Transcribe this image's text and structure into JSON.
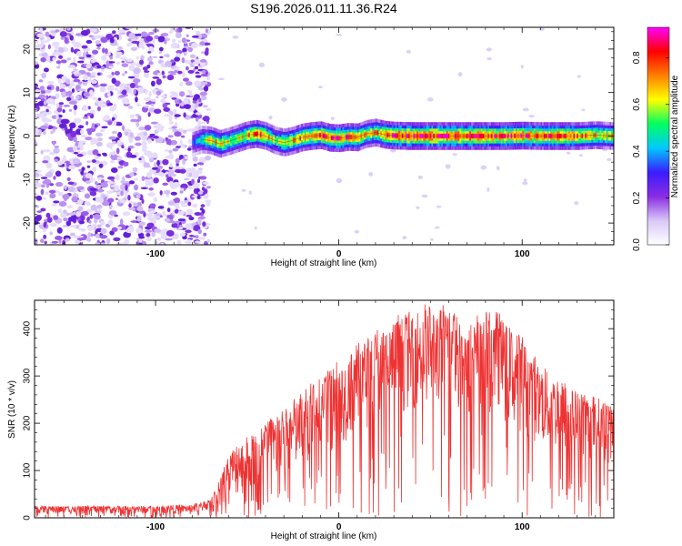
{
  "figure_title": "S196.2026.011.11.36.R24",
  "chart_data": [
    {
      "type": "heatmap",
      "title": "S196.2026.011.11.36.R24",
      "xlabel": "Height of straight line (km)",
      "ylabel": "Frequency (Hz)",
      "xlim": [
        -166,
        150
      ],
      "ylim": [
        -25,
        25
      ],
      "xticks": [
        -100,
        0,
        100
      ],
      "yticks": [
        -20,
        -10,
        0,
        10,
        20
      ],
      "colorbar": {
        "label": "Normalized spectral amplitude",
        "range": [
          0,
          0.93
        ],
        "ticks": [
          0.0,
          0.2,
          0.4,
          0.6,
          0.8
        ],
        "colors": [
          "#ffffff",
          "#d8c8f8",
          "#8a2be2",
          "#3a1cff",
          "#00c8ff",
          "#00ff60",
          "#ffff00",
          "#ff8000",
          "#ff0000",
          "#ff00ff"
        ]
      },
      "noise_region_x": [
        -166,
        -75
      ],
      "signal_trace": {
        "x": [
          -80,
          -75,
          -70,
          -65,
          -60,
          -55,
          -50,
          -45,
          -40,
          -35,
          -30,
          -25,
          -20,
          -15,
          -10,
          -5,
          0,
          5,
          10,
          15,
          20,
          25,
          30,
          40,
          50,
          60,
          70,
          80,
          90,
          100,
          110,
          120,
          130,
          140,
          150
        ],
        "freq_hz": [
          -1.5,
          -0.8,
          -1.0,
          -1.8,
          -1.2,
          -0.5,
          0.2,
          0.5,
          0.0,
          -1.0,
          -1.5,
          -1.0,
          -0.3,
          0.0,
          0.2,
          -0.4,
          -0.5,
          -0.2,
          -0.3,
          0.5,
          0.8,
          0.3,
          0.1,
          0.0,
          0.0,
          0.0,
          0.0,
          0.0,
          0.0,
          0.1,
          0.0,
          0.0,
          0.0,
          0.2,
          0.0
        ],
        "amplitude": [
          0.35,
          0.55,
          0.7,
          0.75,
          0.65,
          0.7,
          0.72,
          0.85,
          0.8,
          0.65,
          0.7,
          0.75,
          0.8,
          0.82,
          0.85,
          0.88,
          0.9,
          0.85,
          0.8,
          0.72,
          0.75,
          0.85,
          0.9,
          0.92,
          0.93,
          0.9,
          0.92,
          0.9,
          0.88,
          0.9,
          0.85,
          0.88,
          0.82,
          0.75,
          0.7
        ]
      }
    },
    {
      "type": "line",
      "title": "",
      "xlabel": "Height of straight line (km)",
      "ylabel": "SNR (10 * v/v)",
      "xlim": [
        -166,
        150
      ],
      "ylim": [
        0,
        460
      ],
      "xticks": [
        -100,
        0,
        100
      ],
      "yticks": [
        0,
        100,
        200,
        300,
        400
      ],
      "color": "#ee3333",
      "envelope": {
        "x": [
          -166,
          -140,
          -120,
          -100,
          -80,
          -70,
          -65,
          -60,
          -50,
          -40,
          -30,
          -20,
          -10,
          0,
          10,
          20,
          30,
          40,
          50,
          60,
          70,
          80,
          90,
          100,
          110,
          120,
          130,
          140,
          150
        ],
        "upper": [
          25,
          25,
          25,
          25,
          28,
          40,
          80,
          140,
          170,
          200,
          230,
          260,
          300,
          330,
          360,
          390,
          420,
          440,
          450,
          440,
          400,
          440,
          420,
          380,
          320,
          290,
          270,
          250,
          240
        ],
        "lower": [
          8,
          8,
          8,
          8,
          10,
          15,
          25,
          40,
          50,
          60,
          80,
          100,
          130,
          150,
          180,
          200,
          220,
          230,
          240,
          230,
          220,
          230,
          200,
          180,
          150,
          140,
          130,
          120,
          110
        ]
      }
    }
  ]
}
